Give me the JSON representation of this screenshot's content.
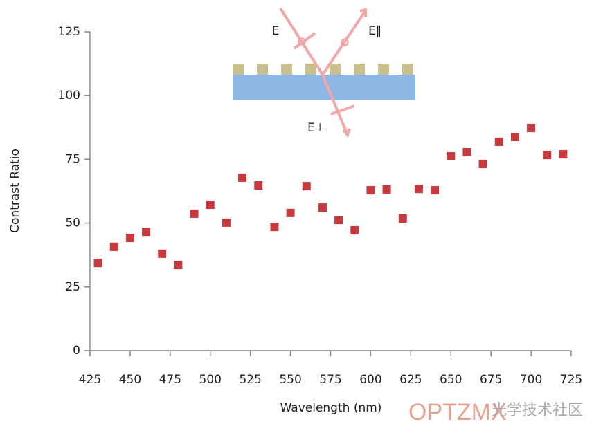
{
  "chart_data": {
    "type": "scatter",
    "xlabel": "Wavelength (nm)",
    "ylabel": "Contrast Ratio",
    "x": [
      430,
      440,
      450,
      460,
      470,
      480,
      490,
      500,
      510,
      520,
      530,
      540,
      550,
      560,
      570,
      580,
      590,
      600,
      610,
      620,
      630,
      640,
      650,
      660,
      670,
      680,
      690,
      700,
      710,
      720
    ],
    "series": [
      {
        "name": null,
        "color": "#c8393d",
        "values": [
          34.4,
          40.7,
          44.2,
          46.6,
          38,
          33.6,
          53.7,
          57.2,
          50.2,
          67.8,
          64.8,
          48.5,
          54,
          64.5,
          56.1,
          51.2,
          47.2,
          62.9,
          63.2,
          51.8,
          63.4,
          62.9,
          76.2,
          77.8,
          73.2,
          81.9,
          83.8,
          87.3,
          76.7,
          77
        ]
      }
    ],
    "xlim": [
      425,
      725
    ],
    "xticks": [
      425,
      450,
      475,
      500,
      525,
      550,
      575,
      600,
      625,
      650,
      675,
      700,
      725
    ],
    "ylim": [
      0,
      125
    ],
    "yticks": [
      0,
      25,
      50,
      75,
      100,
      125
    ],
    "inset_labels": [
      "E",
      "E∥",
      "E⊥"
    ],
    "watermark": [
      "OPTZMX",
      "光学技术社区"
    ]
  }
}
